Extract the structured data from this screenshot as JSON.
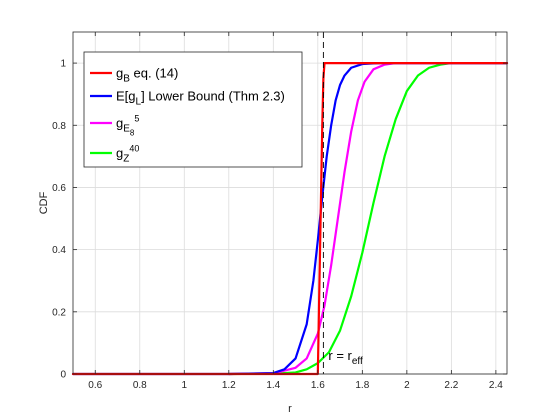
{
  "chart_data": {
    "type": "line",
    "title": "",
    "xlabel": "r",
    "ylabel": "CDF",
    "xlim": [
      0.5,
      2.45
    ],
    "ylim": [
      0,
      1.1
    ],
    "xticks": [
      "0.6",
      "0.8",
      "1",
      "1.2",
      "1.4",
      "1.6",
      "1.8",
      "2",
      "2.2",
      "2.4"
    ],
    "yticks": [
      "0",
      "0.2",
      "0.4",
      "0.6",
      "0.8",
      "1"
    ],
    "grid": true,
    "legend_position": "top-left",
    "series": [
      {
        "name": "g_B eq. (14)",
        "label_main": "g",
        "label_sub": "B",
        "label_rest": " eq. (14)",
        "color": "#ff0000",
        "x": [
          0.5,
          1.6,
          1.605,
          1.61,
          1.615,
          1.62,
          1.625,
          1.63,
          2.45
        ],
        "y": [
          0,
          0,
          0.2,
          0.4,
          0.6,
          0.8,
          0.95,
          1,
          1
        ]
      },
      {
        "name": "E[g_L] Lower Bound (Thm 2.3)",
        "label_main": "E[g",
        "label_sub": "L",
        "label_rest": "] Lower Bound (Thm 2.3)",
        "color": "#0000ff",
        "x": [
          0.5,
          1.2,
          1.4,
          1.45,
          1.5,
          1.55,
          1.58,
          1.6,
          1.62,
          1.64,
          1.66,
          1.68,
          1.7,
          1.72,
          1.75,
          1.8,
          1.85,
          1.9,
          2.0,
          2.45
        ],
        "y": [
          0,
          0,
          0.003,
          0.015,
          0.05,
          0.16,
          0.3,
          0.43,
          0.57,
          0.7,
          0.8,
          0.88,
          0.93,
          0.96,
          0.985,
          0.997,
          0.999,
          1,
          1,
          1
        ]
      },
      {
        "name": "g_E8^5",
        "label_main": "g",
        "label_sub": "E",
        "label_subsub": "8",
        "label_sup": "5",
        "label_rest": "",
        "color": "#ff00ff",
        "x": [
          1.2,
          1.4,
          1.5,
          1.55,
          1.6,
          1.63,
          1.66,
          1.69,
          1.72,
          1.75,
          1.78,
          1.81,
          1.85,
          1.9,
          1.95,
          2.45
        ],
        "y": [
          0,
          0.002,
          0.02,
          0.05,
          0.13,
          0.22,
          0.35,
          0.5,
          0.65,
          0.78,
          0.88,
          0.94,
          0.98,
          0.995,
          1,
          1
        ]
      },
      {
        "name": "g_Z^40",
        "label_main": "g",
        "label_sub": "Z",
        "label_sup": "40",
        "label_rest": "",
        "color": "#00ff00",
        "x": [
          1.2,
          1.4,
          1.5,
          1.55,
          1.6,
          1.65,
          1.7,
          1.75,
          1.8,
          1.85,
          1.9,
          1.95,
          2.0,
          2.05,
          2.1,
          2.15,
          2.2,
          2.3,
          2.45
        ],
        "y": [
          0,
          0.001,
          0.005,
          0.015,
          0.035,
          0.07,
          0.14,
          0.25,
          0.39,
          0.55,
          0.7,
          0.82,
          0.91,
          0.96,
          0.985,
          0.995,
          1,
          1,
          1
        ]
      }
    ],
    "vertical_line": {
      "x": 1.625,
      "style": "dashed",
      "color": "#000000",
      "annotation_main": "r = r",
      "annotation_sub": "eff"
    }
  }
}
